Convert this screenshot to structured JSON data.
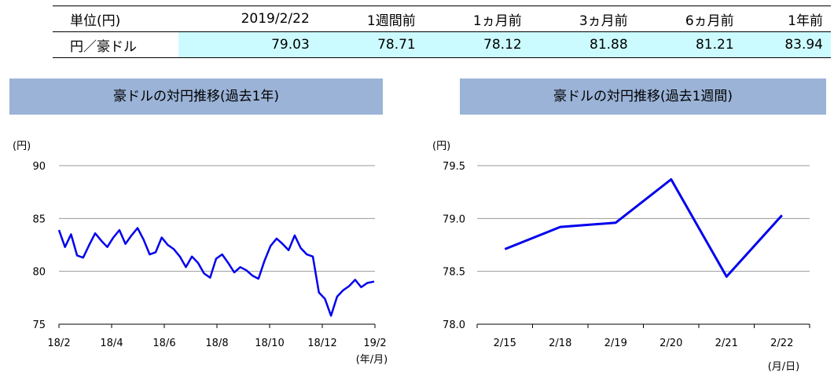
{
  "table": {
    "header": [
      "単位(円)",
      "2019/2/22",
      "1週間前",
      "1ヵ月前",
      "3ヵ月前",
      "6ヵ月前",
      "1年前"
    ],
    "row": {
      "label": "円／豪ドル",
      "values": [
        "79.03",
        "78.71",
        "78.12",
        "81.88",
        "81.21",
        "83.94"
      ]
    }
  },
  "chart_data": [
    {
      "type": "line",
      "title": "豪ドルの対円推移(過去1年)",
      "unit_label": "(円)",
      "x_unit_label": "(年/月)",
      "ylim": [
        75,
        90
      ],
      "y_ticks": [
        "90",
        "85",
        "80",
        "75"
      ],
      "x_ticks": [
        "18/2",
        "18/4",
        "18/6",
        "18/8",
        "18/10",
        "18/12",
        "19/2"
      ],
      "grid": true,
      "color": "#0000ee",
      "series": [
        {
          "x": [
            "2018/2/22",
            "2018/3/1",
            "2018/3/8",
            "2018/3/15",
            "2018/3/22",
            "2018/3/29",
            "2018/4/5",
            "2018/4/12",
            "2018/4/19",
            "2018/4/26",
            "2018/5/3",
            "2018/5/10",
            "2018/5/17",
            "2018/5/24",
            "2018/5/31",
            "2018/6/7",
            "2018/6/14",
            "2018/6/21",
            "2018/6/28",
            "2018/7/5",
            "2018/7/12",
            "2018/7/19",
            "2018/7/26",
            "2018/8/2",
            "2018/8/9",
            "2018/8/16",
            "2018/8/23",
            "2018/8/30",
            "2018/9/6",
            "2018/9/13",
            "2018/9/20",
            "2018/9/27",
            "2018/10/4",
            "2018/10/11",
            "2018/10/18",
            "2018/10/25",
            "2018/11/1",
            "2018/11/8",
            "2018/11/15",
            "2018/11/22",
            "2018/11/29",
            "2018/12/6",
            "2018/12/13",
            "2018/12/20",
            "2018/12/27",
            "2019/1/3",
            "2019/1/10",
            "2019/1/17",
            "2019/1/24",
            "2019/1/31",
            "2019/2/7",
            "2019/2/14",
            "2019/2/22"
          ],
          "values": [
            83.9,
            82.3,
            83.5,
            81.5,
            81.3,
            82.5,
            83.6,
            82.9,
            82.3,
            83.2,
            83.9,
            82.6,
            83.4,
            84.1,
            83.0,
            81.6,
            81.8,
            83.2,
            82.5,
            82.1,
            81.4,
            80.4,
            81.4,
            80.8,
            79.8,
            79.4,
            81.2,
            81.6,
            80.8,
            79.9,
            80.4,
            80.1,
            79.6,
            79.3,
            81.0,
            82.4,
            83.1,
            82.6,
            82.0,
            83.4,
            82.2,
            81.6,
            81.4,
            78.0,
            77.4,
            75.8,
            77.6,
            78.2,
            78.6,
            79.2,
            78.5,
            78.9,
            79.03
          ]
        }
      ]
    },
    {
      "type": "line",
      "title": "豪ドルの対円推移(過去1週間)",
      "unit_label": "(円)",
      "x_unit_label": "(月/日)",
      "ylim": [
        78.0,
        79.5
      ],
      "y_ticks": [
        "79.5",
        "79.0",
        "78.5",
        "78.0"
      ],
      "x_ticks": [
        "2/15",
        "2/18",
        "2/19",
        "2/20",
        "2/21",
        "2/22"
      ],
      "grid": true,
      "color": "#0000ee",
      "series": [
        {
          "x": [
            "2/15",
            "2/18",
            "2/19",
            "2/20",
            "2/21",
            "2/22"
          ],
          "values": [
            78.71,
            78.92,
            78.96,
            79.37,
            78.45,
            79.03
          ]
        }
      ]
    }
  ]
}
